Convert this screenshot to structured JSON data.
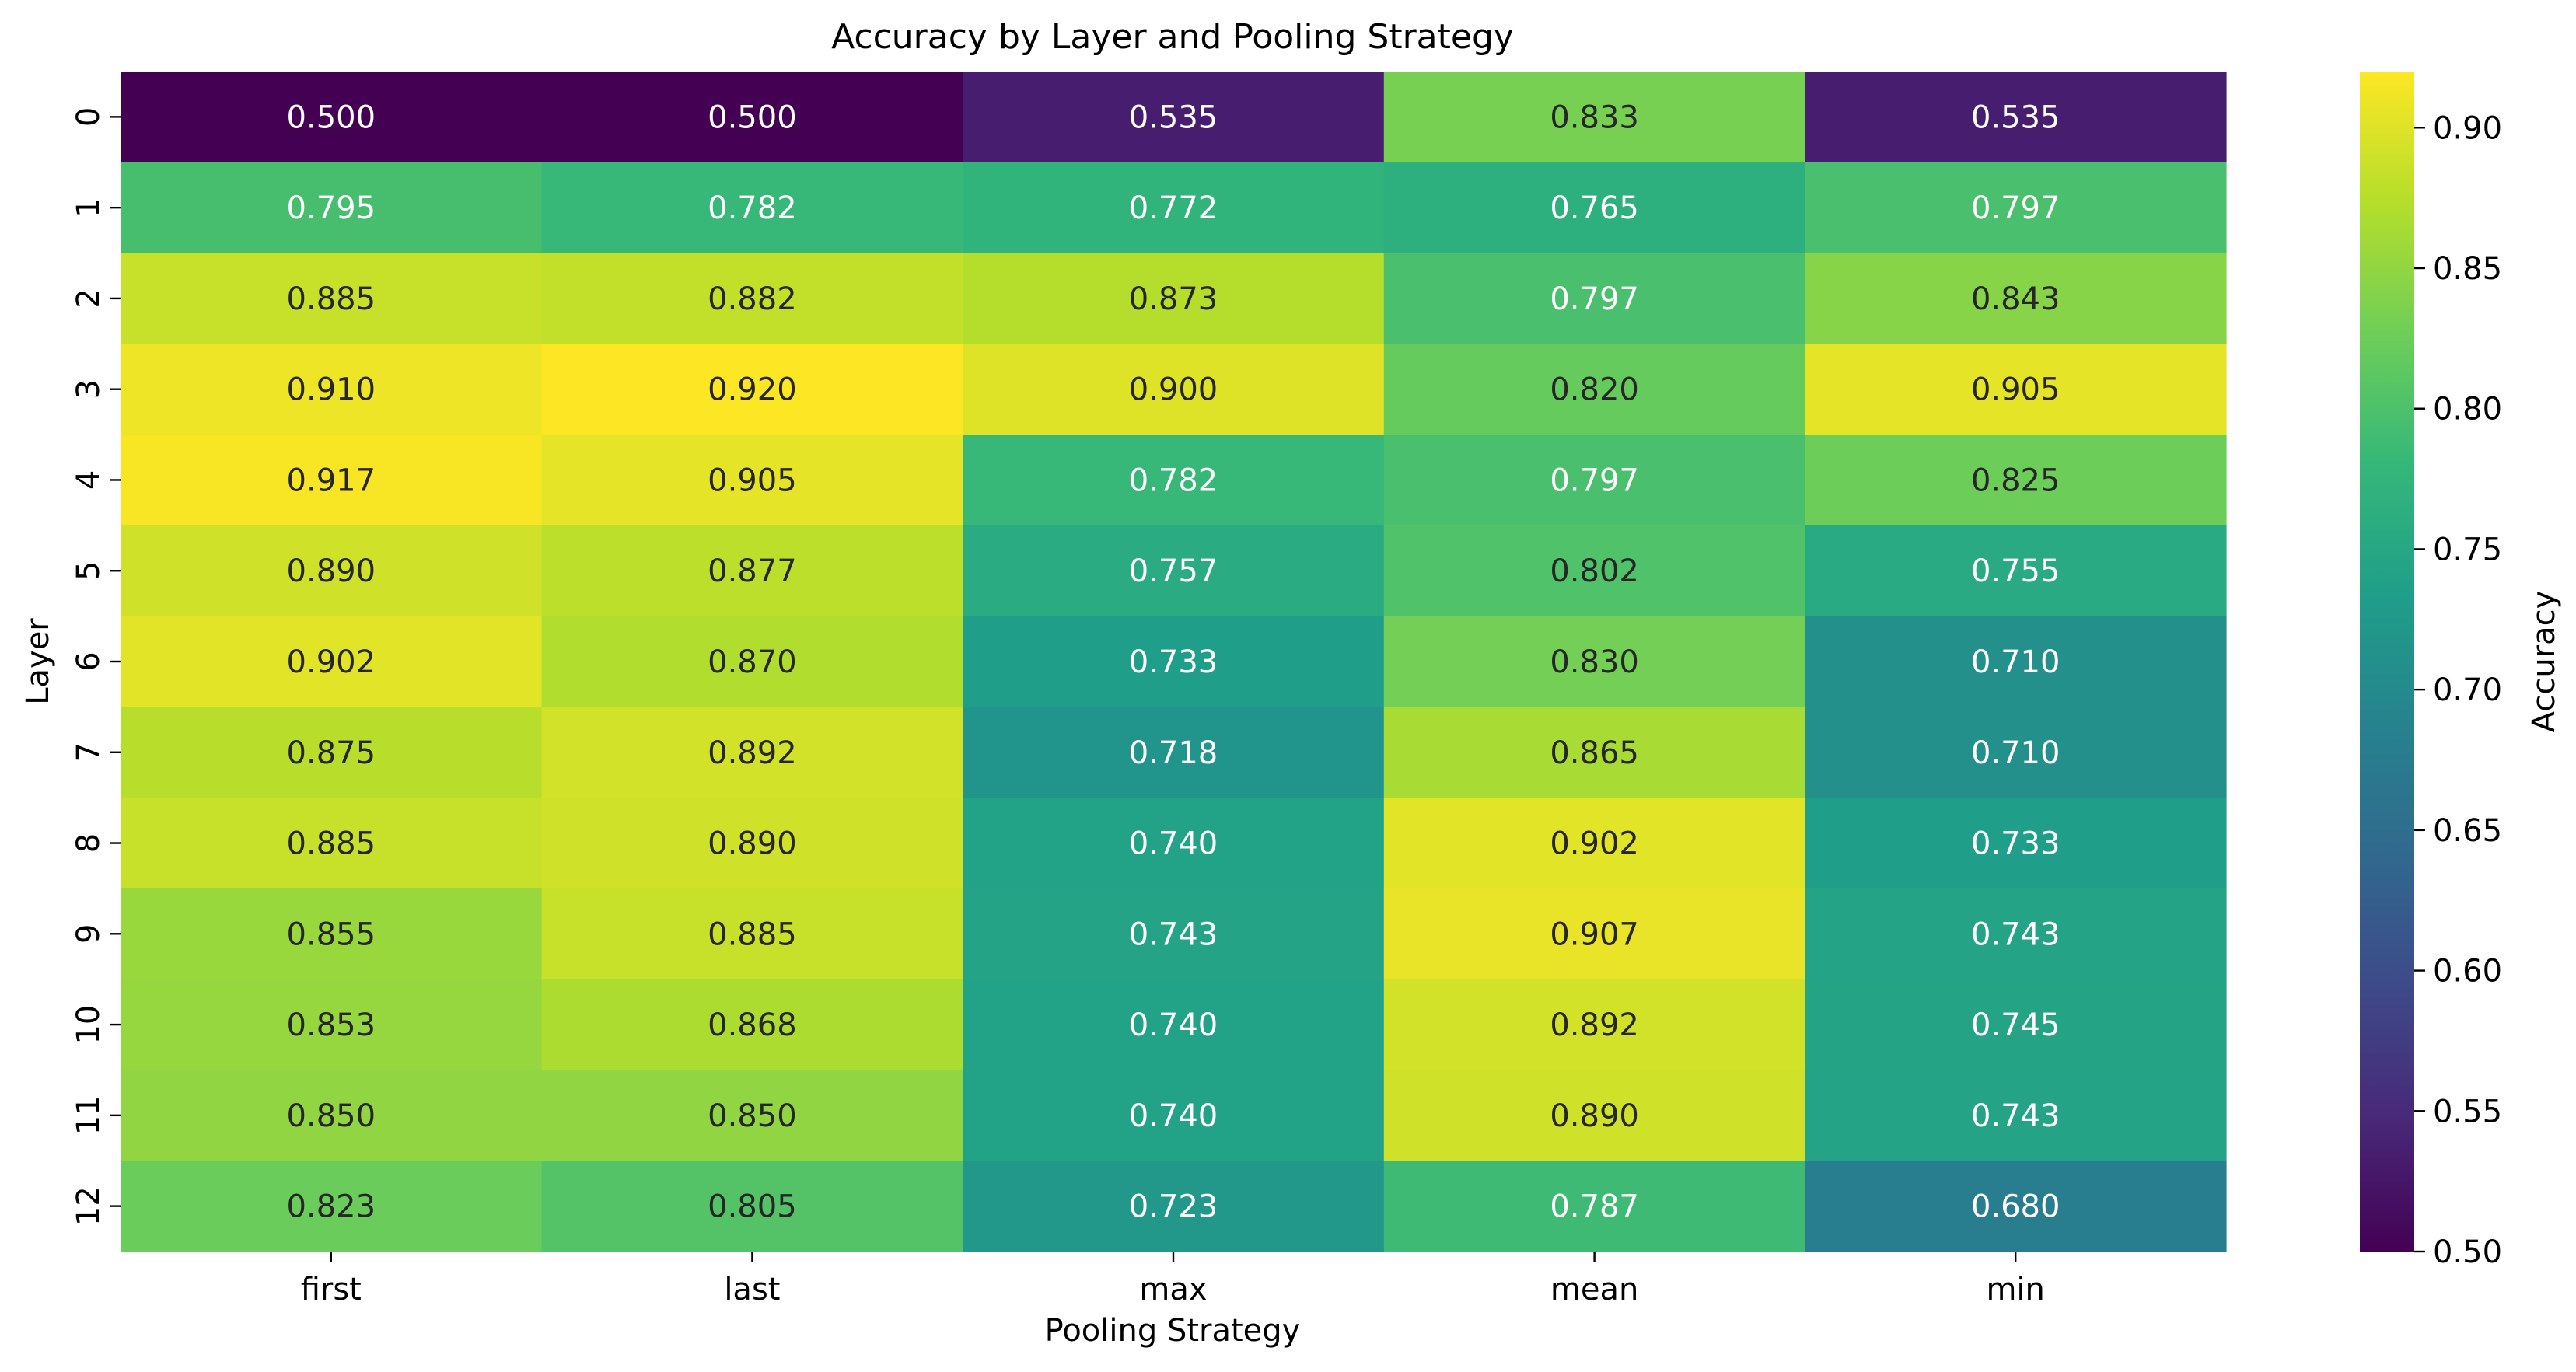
{
  "chart_data": {
    "type": "heatmap",
    "title": "Accuracy by Layer and Pooling Strategy",
    "xlabel": "Pooling Strategy",
    "ylabel": "Layer",
    "columns": [
      "first",
      "last",
      "max",
      "mean",
      "min"
    ],
    "rows": [
      "0",
      "1",
      "2",
      "3",
      "4",
      "5",
      "6",
      "7",
      "8",
      "9",
      "10",
      "11",
      "12"
    ],
    "values": [
      [
        0.5,
        0.5,
        0.535,
        0.833,
        0.535
      ],
      [
        0.795,
        0.782,
        0.772,
        0.765,
        0.797
      ],
      [
        0.885,
        0.882,
        0.873,
        0.797,
        0.843
      ],
      [
        0.91,
        0.92,
        0.9,
        0.82,
        0.905
      ],
      [
        0.917,
        0.905,
        0.782,
        0.797,
        0.825
      ],
      [
        0.89,
        0.877,
        0.757,
        0.802,
        0.755
      ],
      [
        0.902,
        0.87,
        0.733,
        0.83,
        0.71
      ],
      [
        0.875,
        0.892,
        0.718,
        0.865,
        0.71
      ],
      [
        0.885,
        0.89,
        0.74,
        0.902,
        0.733
      ],
      [
        0.855,
        0.885,
        0.743,
        0.907,
        0.743
      ],
      [
        0.853,
        0.868,
        0.74,
        0.892,
        0.745
      ],
      [
        0.85,
        0.85,
        0.74,
        0.89,
        0.743
      ],
      [
        0.823,
        0.805,
        0.723,
        0.787,
        0.68
      ]
    ],
    "colorbar": {
      "label": "Accuracy",
      "min": 0.5,
      "max": 0.92,
      "ticks": [
        0.5,
        0.55,
        0.6,
        0.65,
        0.7,
        0.75,
        0.8,
        0.85,
        0.9
      ],
      "colormap": "viridis"
    },
    "colormap_stops": [
      "#440154",
      "#482878",
      "#3e4989",
      "#31688e",
      "#26828e",
      "#1f9e89",
      "#35b779",
      "#6ece58",
      "#b5de2b",
      "#fde725"
    ],
    "annotation_colors": {
      "light": "#ffffff",
      "dark": "#262626"
    },
    "grid": false,
    "colorbar_position": "right"
  }
}
